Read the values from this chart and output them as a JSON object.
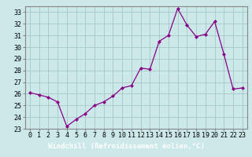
{
  "x": [
    0,
    1,
    2,
    3,
    4,
    5,
    6,
    7,
    8,
    9,
    10,
    11,
    12,
    13,
    14,
    15,
    16,
    17,
    18,
    19,
    20,
    21,
    22,
    23
  ],
  "y": [
    26.1,
    25.9,
    25.7,
    25.3,
    23.2,
    23.8,
    24.3,
    25.0,
    25.3,
    25.8,
    26.5,
    26.7,
    28.2,
    28.1,
    30.5,
    31.0,
    33.3,
    31.9,
    30.9,
    31.1,
    32.2,
    29.4,
    26.4,
    26.5
  ],
  "line_color": "#880088",
  "marker": "D",
  "marker_size": 2.0,
  "bg_color": "#cce8e8",
  "grid_color": "#aacccc",
  "ylim": [
    23,
    33.5
  ],
  "xlim": [
    -0.5,
    23.5
  ],
  "yticks": [
    23,
    24,
    25,
    26,
    27,
    28,
    29,
    30,
    31,
    32,
    33
  ],
  "xticks": [
    0,
    1,
    2,
    3,
    4,
    5,
    6,
    7,
    8,
    9,
    10,
    11,
    12,
    13,
    14,
    15,
    16,
    17,
    18,
    19,
    20,
    21,
    22,
    23
  ],
  "xlabel": "Windchill (Refroidissement éolien,°C)",
  "xlabel_fontsize": 6.5,
  "tick_fontsize": 6,
  "spine_color": "#888888",
  "banner_color": "#6666aa",
  "banner_text_color": "#ffffff"
}
